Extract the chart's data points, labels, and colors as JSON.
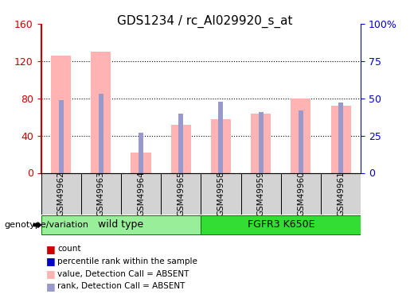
{
  "title": "GDS1234 / rc_AI029920_s_at",
  "samples": [
    "GSM49962",
    "GSM49963",
    "GSM49964",
    "GSM49965",
    "GSM49958",
    "GSM49959",
    "GSM49960",
    "GSM49961"
  ],
  "values": [
    126,
    130,
    22,
    52,
    58,
    64,
    80,
    72
  ],
  "ranks": [
    49,
    53,
    27,
    40,
    48,
    41,
    42,
    47
  ],
  "left_ylim": [
    0,
    160
  ],
  "right_ylim": [
    0,
    100
  ],
  "left_yticks": [
    0,
    40,
    80,
    120,
    160
  ],
  "right_yticks": [
    0,
    25,
    50,
    75,
    100
  ],
  "right_yticklabels": [
    "0",
    "25",
    "50",
    "75",
    "100%"
  ],
  "bar_color": "#ffb3b3",
  "rank_color": "#9999cc",
  "left_axis_color": "#cc0000",
  "right_axis_color": "#0000cc",
  "groups": [
    {
      "label": "wild type",
      "indices": [
        0,
        1,
        2,
        3
      ],
      "color": "#99ee99"
    },
    {
      "label": "FGFR3 K650E",
      "indices": [
        4,
        5,
        6,
        7
      ],
      "color": "#33dd33"
    }
  ],
  "legend_items": [
    {
      "label": "count",
      "color": "#cc0000"
    },
    {
      "label": "percentile rank within the sample",
      "color": "#0000cc"
    },
    {
      "label": "value, Detection Call = ABSENT",
      "color": "#ffb3b3"
    },
    {
      "label": "rank, Detection Call = ABSENT",
      "color": "#9999cc"
    }
  ],
  "genotype_label": "genotype/variation",
  "grid_color": "black"
}
